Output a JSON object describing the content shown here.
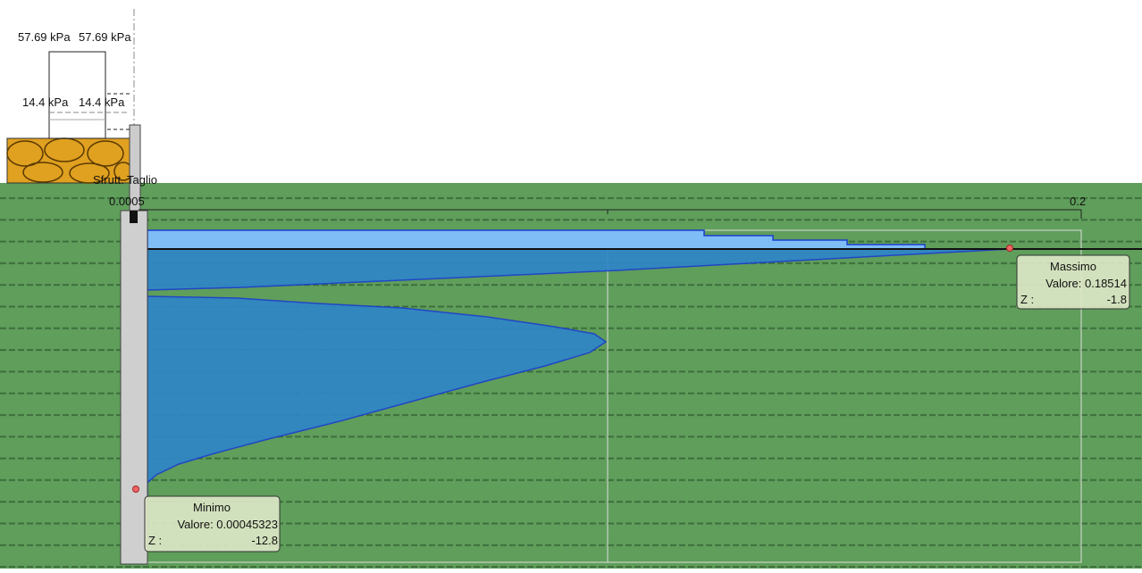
{
  "loads": {
    "top_left": "57.69 kPa",
    "top_right": "57.69 kPa",
    "bottom_left": "14.4 kPa",
    "bottom_right": "14.4 kPa"
  },
  "diagram": {
    "title": "Sfrutt. Taglio",
    "axis_start": "0.0005",
    "axis_end": "0.2"
  },
  "max_box": {
    "title": "Massimo",
    "value": "Valore: 0.18514",
    "z_label": "Z :",
    "z_value": "-1.8"
  },
  "min_box": {
    "title": "Minimo",
    "value": "Valore: 0.00045323",
    "z_label": "Z :",
    "z_value": "-12.8"
  }
}
